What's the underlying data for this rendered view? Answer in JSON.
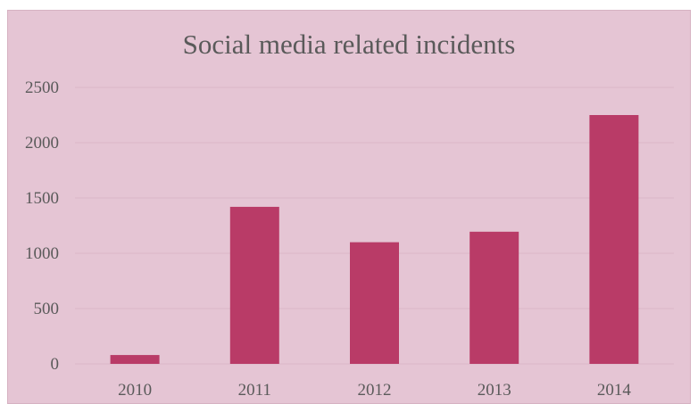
{
  "chart_data": {
    "type": "bar",
    "title": "Social media related incidents",
    "categories": [
      "2010",
      "2011",
      "2012",
      "2013",
      "2014"
    ],
    "values": [
      80,
      1420,
      1100,
      1195,
      2250
    ],
    "xlabel": "",
    "ylabel": "",
    "ylim": [
      0,
      2500
    ],
    "yticks": [
      0,
      500,
      1000,
      1500,
      2000,
      2500
    ],
    "grid": true,
    "legend": "none",
    "colors": {
      "bar": "#b93b67",
      "background": "#e5c5d4",
      "grid": "#dbb6c8",
      "text": "#5a5a5a"
    }
  }
}
